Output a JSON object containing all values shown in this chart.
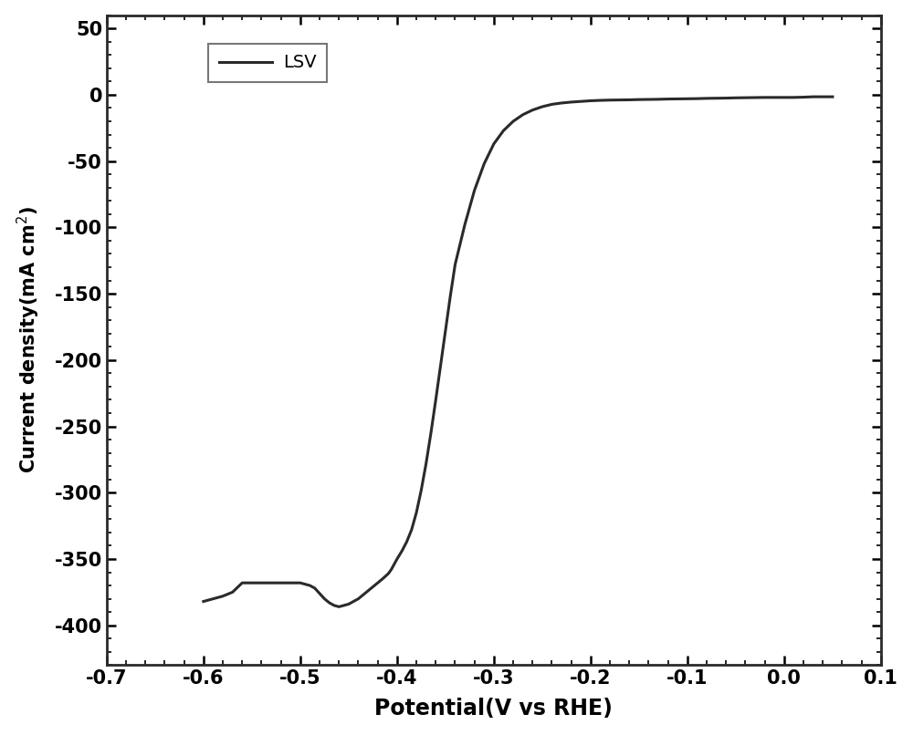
{
  "xlabel": "Potential(V vs RHE)",
  "ylabel": "Current density(mA cm$^{-2}$)",
  "xlim": [
    -0.7,
    0.1
  ],
  "ylim": [
    -430,
    60
  ],
  "xticks": [
    -0.7,
    -0.6,
    -0.5,
    -0.4,
    -0.3,
    -0.2,
    -0.1,
    0.0,
    0.1
  ],
  "yticks": [
    50,
    0,
    -50,
    -100,
    -150,
    -200,
    -250,
    -300,
    -350,
    -400
  ],
  "line_color": "#2a2a2a",
  "line_width": 2.2,
  "legend_label": "LSV",
  "background_color": "#ffffff",
  "x_data": [
    0.05,
    0.04,
    0.03,
    0.02,
    0.01,
    0.0,
    -0.01,
    -0.02,
    -0.03,
    -0.04,
    -0.05,
    -0.06,
    -0.07,
    -0.08,
    -0.09,
    -0.1,
    -0.11,
    -0.12,
    -0.13,
    -0.14,
    -0.15,
    -0.16,
    -0.17,
    -0.18,
    -0.19,
    -0.2,
    -0.21,
    -0.22,
    -0.23,
    -0.24,
    -0.25,
    -0.26,
    -0.27,
    -0.28,
    -0.29,
    -0.3,
    -0.31,
    -0.32,
    -0.33,
    -0.34,
    -0.345,
    -0.35,
    -0.355,
    -0.36,
    -0.365,
    -0.37,
    -0.375,
    -0.38,
    -0.385,
    -0.39,
    -0.395,
    -0.4,
    -0.403,
    -0.406,
    -0.409,
    -0.412,
    -0.415,
    -0.42,
    -0.425,
    -0.43,
    -0.435,
    -0.44,
    -0.445,
    -0.45,
    -0.455,
    -0.46,
    -0.465,
    -0.47,
    -0.475,
    -0.48,
    -0.485,
    -0.49,
    -0.495,
    -0.5,
    -0.51,
    -0.52,
    -0.53,
    -0.54,
    -0.55,
    -0.56,
    -0.57,
    -0.58,
    -0.59,
    -0.6
  ],
  "y_data": [
    -1.5,
    -1.5,
    -1.5,
    -1.8,
    -2.0,
    -2.0,
    -2.0,
    -2.0,
    -2.1,
    -2.2,
    -2.3,
    -2.5,
    -2.6,
    -2.7,
    -2.9,
    -3.0,
    -3.1,
    -3.2,
    -3.4,
    -3.5,
    -3.6,
    -3.8,
    -3.9,
    -4.0,
    -4.2,
    -4.5,
    -5.0,
    -5.5,
    -6.2,
    -7.2,
    -9.0,
    -11.5,
    -15,
    -20,
    -27,
    -37,
    -52,
    -72,
    -98,
    -128,
    -152,
    -178,
    -204,
    -230,
    -255,
    -278,
    -298,
    -315,
    -328,
    -337,
    -344,
    -350,
    -354,
    -358,
    -361,
    -363,
    -365,
    -368,
    -371,
    -374,
    -377,
    -380,
    -382,
    -384,
    -385,
    -386,
    -385,
    -383,
    -380,
    -376,
    -372,
    -370,
    -369,
    -368,
    -368,
    -368,
    -368,
    -368,
    -368,
    -368,
    -375,
    -378,
    -380,
    -382
  ]
}
